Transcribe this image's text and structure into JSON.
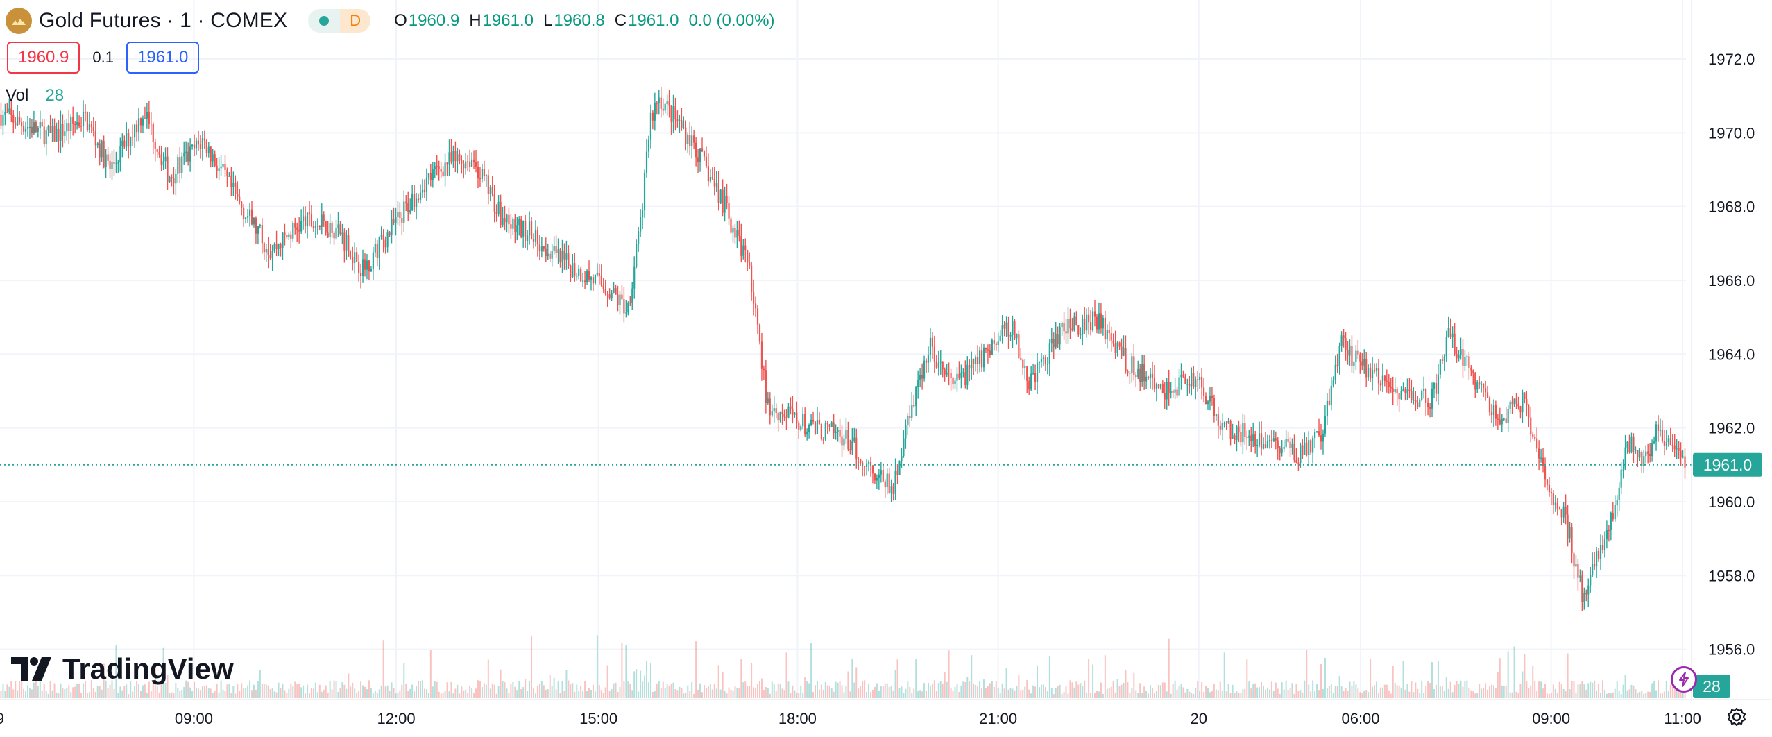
{
  "header": {
    "title": "Gold Futures · 1 · COMEX",
    "status_letter": "D",
    "ohlc": [
      {
        "key": "O",
        "value": "1960.9"
      },
      {
        "key": "H",
        "value": "1961.0"
      },
      {
        "key": "L",
        "value": "1960.8"
      },
      {
        "key": "C",
        "value": "1961.0"
      }
    ],
    "change": "0.0 (0.00%)"
  },
  "quote": {
    "sell": "1960.9",
    "spread": "0.1",
    "buy": "1961.0"
  },
  "volume": {
    "label": "Vol",
    "value": "28"
  },
  "branding": {
    "name": "TradingView"
  },
  "colors": {
    "up": "#26a69a",
    "down": "#ef5350",
    "price_label_bg": "#26a69a"
  },
  "chart_data": {
    "type": "candlestick",
    "y_axis": {
      "ticks": [
        "1972.0",
        "1970.0",
        "1968.0",
        "1966.0",
        "1964.0",
        "1962.0",
        "1960.0",
        "1958.0",
        "1956.0"
      ],
      "tick_values": [
        1972,
        1970,
        1968,
        1966,
        1964,
        1962,
        1960,
        1958,
        1956
      ],
      "range": [
        1954.6,
        1973.6
      ]
    },
    "x_axis": {
      "ticks": [
        "9",
        "09:00",
        "12:00",
        "15:00",
        "18:00",
        "21:00",
        "20",
        "06:00",
        "09:00",
        "11:00"
      ]
    },
    "last_price": "1961.0",
    "last_price_value": 1961.0,
    "last_volume": "28",
    "grid": true,
    "price_path": [
      [
        0,
        1970.5
      ],
      [
        0.03,
        1969.9
      ],
      [
        0.05,
        1970.4
      ],
      [
        0.065,
        1969.0
      ],
      [
        0.085,
        1970.6
      ],
      [
        0.1,
        1968.8
      ],
      [
        0.12,
        1969.8
      ],
      [
        0.14,
        1968.2
      ],
      [
        0.16,
        1966.8
      ],
      [
        0.18,
        1967.6
      ],
      [
        0.2,
        1967.4
      ],
      [
        0.215,
        1966.3
      ],
      [
        0.235,
        1967.6
      ],
      [
        0.25,
        1968.6
      ],
      [
        0.265,
        1969.2
      ],
      [
        0.28,
        1969.3
      ],
      [
        0.3,
        1967.5
      ],
      [
        0.315,
        1967.3
      ],
      [
        0.33,
        1966.6
      ],
      [
        0.345,
        1966.2
      ],
      [
        0.36,
        1965.8
      ],
      [
        0.372,
        1965.2
      ],
      [
        0.38,
        1967.6
      ],
      [
        0.385,
        1970.2
      ],
      [
        0.39,
        1971.0
      ],
      [
        0.41,
        1969.8
      ],
      [
        0.43,
        1968.0
      ],
      [
        0.445,
        1966.2
      ],
      [
        0.455,
        1962.6
      ],
      [
        0.465,
        1962.4
      ],
      [
        0.48,
        1962.0
      ],
      [
        0.5,
        1961.8
      ],
      [
        0.515,
        1961.0
      ],
      [
        0.53,
        1960.3
      ],
      [
        0.54,
        1962.6
      ],
      [
        0.552,
        1964.2
      ],
      [
        0.565,
        1963.1
      ],
      [
        0.58,
        1963.8
      ],
      [
        0.6,
        1964.8
      ],
      [
        0.61,
        1963.2
      ],
      [
        0.63,
        1964.6
      ],
      [
        0.65,
        1965.0
      ],
      [
        0.67,
        1963.7
      ],
      [
        0.69,
        1963.0
      ],
      [
        0.71,
        1963.4
      ],
      [
        0.725,
        1962.0
      ],
      [
        0.745,
        1961.8
      ],
      [
        0.77,
        1961.3
      ],
      [
        0.785,
        1961.8
      ],
      [
        0.795,
        1964.3
      ],
      [
        0.805,
        1963.8
      ],
      [
        0.82,
        1963.2
      ],
      [
        0.835,
        1962.9
      ],
      [
        0.85,
        1962.8
      ],
      [
        0.86,
        1964.5
      ],
      [
        0.875,
        1963.3
      ],
      [
        0.89,
        1962.2
      ],
      [
        0.905,
        1962.8
      ],
      [
        0.915,
        1960.8
      ],
      [
        0.93,
        1959.4
      ],
      [
        0.94,
        1957.2
      ],
      [
        0.95,
        1958.8
      ],
      [
        0.96,
        1960.2
      ],
      [
        0.965,
        1961.6
      ],
      [
        0.975,
        1961.2
      ],
      [
        0.985,
        1962.0
      ],
      [
        0.992,
        1961.3
      ],
      [
        1.0,
        1961.0
      ]
    ]
  }
}
